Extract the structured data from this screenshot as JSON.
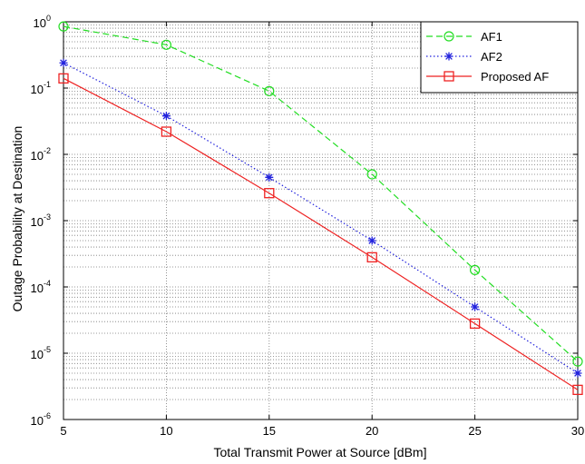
{
  "chart_data": {
    "type": "line",
    "title": "",
    "xlabel": "Total Transmit Power at Source [dBm]",
    "ylabel": "Outage Probability at Destination",
    "x": [
      5,
      10,
      15,
      20,
      25,
      30
    ],
    "xlim": [
      5,
      30
    ],
    "ylim": [
      1e-06,
      1
    ],
    "yscale": "log",
    "xticks": [
      "5",
      "10",
      "15",
      "20",
      "25",
      "30"
    ],
    "yticks": [
      {
        "base": "10",
        "exp": "-6"
      },
      {
        "base": "10",
        "exp": "-5"
      },
      {
        "base": "10",
        "exp": "-4"
      },
      {
        "base": "10",
        "exp": "-3"
      },
      {
        "base": "10",
        "exp": "-2"
      },
      {
        "base": "10",
        "exp": "-1"
      },
      {
        "base": "10",
        "exp": "0"
      }
    ],
    "grid": true,
    "legend_position": "top-right",
    "series": [
      {
        "name": "AF1",
        "values": [
          0.85,
          0.45,
          0.09,
          0.005,
          0.00018,
          7.5e-06
        ],
        "color": "#22dd22",
        "line": "dashed",
        "marker": "circle"
      },
      {
        "name": "AF2",
        "values": [
          0.24,
          0.038,
          0.0045,
          0.0005,
          5e-05,
          5e-06
        ],
        "color": "#2222dd",
        "line": "dotted",
        "marker": "asterisk"
      },
      {
        "name": "Proposed AF",
        "values": [
          0.14,
          0.022,
          0.0026,
          0.00028,
          2.8e-05,
          2.8e-06
        ],
        "color": "#ee2222",
        "line": "solid",
        "marker": "square"
      }
    ]
  }
}
